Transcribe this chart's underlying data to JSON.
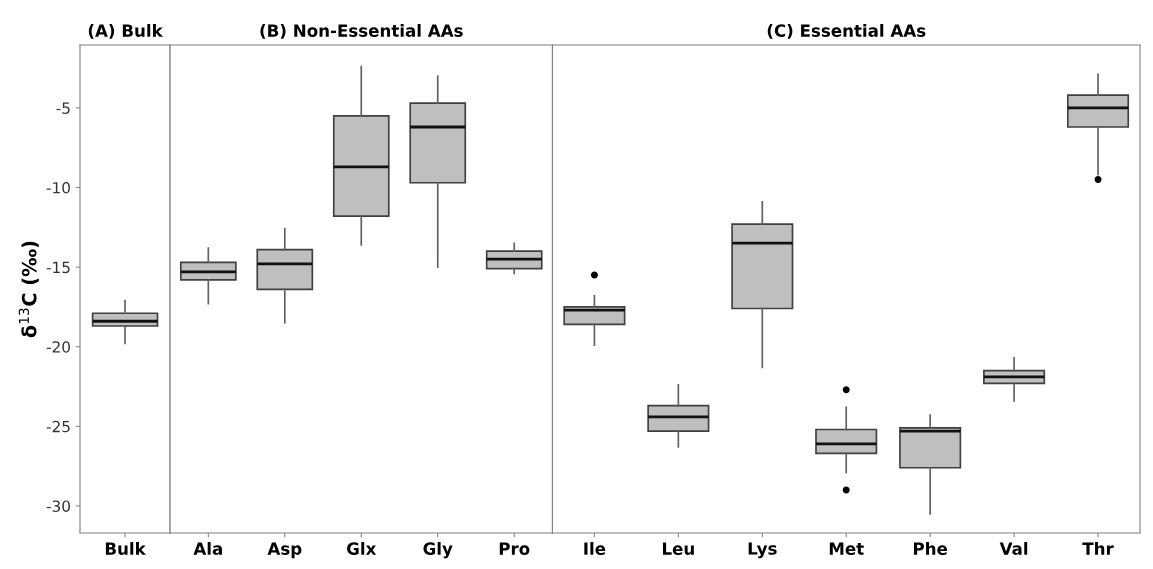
{
  "chart_data": [
    {
      "type": "box",
      "title": "(A) Bulk",
      "ylabel": "δ$^{13}$C (‰)",
      "categories": [
        "Bulk"
      ],
      "ylim": [
        -31.7,
        -1.05
      ],
      "yticks": [
        -30,
        -25,
        -20,
        -15,
        -10,
        -5
      ],
      "color": "#bfbfbf",
      "grid": false,
      "boxes": [
        {
          "low": -19.8,
          "q1": -18.7,
          "median": -18.4,
          "q3": -17.9,
          "high": -17.1
        }
      ]
    },
    {
      "type": "box",
      "title": "(B) Non-Essential AAs",
      "categories": [
        "Ala",
        "Asp",
        "Glx",
        "Gly",
        "Pro"
      ],
      "ylim": [
        -31.7,
        -1.05
      ],
      "yticks": [
        -30,
        -25,
        -20,
        -15,
        -10,
        -5
      ],
      "tick_labels": "x",
      "color": "#bfbfbf",
      "grid": false,
      "boxes": [
        {
          "low": -17.3,
          "q1": -15.8,
          "median": -15.3,
          "q3": -14.7,
          "high": -13.8
        },
        {
          "low": -18.5,
          "q1": -16.4,
          "median": -14.8,
          "q3": -13.9,
          "high": -12.6
        },
        {
          "low": -13.6,
          "q1": -11.8,
          "median": -8.7,
          "q3": -5.5,
          "high": -2.4
        },
        {
          "low": -15.0,
          "q1": -9.7,
          "median": -6.2,
          "q3": -4.7,
          "high": -3.0
        },
        {
          "low": -15.4,
          "q1": -15.1,
          "median": -14.5,
          "q3": -14.0,
          "high": -13.5
        }
      ]
    },
    {
      "type": "box",
      "title": "(C) Essential AAs",
      "categories": [
        "Ile",
        "Leu",
        "Lys",
        "Met",
        "Phe",
        "Val",
        "Thr"
      ],
      "ylim": [
        -31.7,
        -1.05
      ],
      "yticks": [
        -30,
        -25,
        -20,
        -15,
        -10,
        -5
      ],
      "tick_labels": "x",
      "color": "#bfbfbf",
      "grid": false,
      "boxes": [
        {
          "low": -19.9,
          "q1": -18.6,
          "median": -17.7,
          "q3": -17.5,
          "high": -16.8,
          "outliers": [
            -15.5
          ]
        },
        {
          "low": -26.3,
          "q1": -25.3,
          "median": -24.4,
          "q3": -23.7,
          "high": -22.4
        },
        {
          "low": -21.3,
          "q1": -17.6,
          "median": -13.5,
          "q3": -12.3,
          "high": -10.9
        },
        {
          "low": -27.9,
          "q1": -26.7,
          "median": -26.1,
          "q3": -25.2,
          "high": -23.8,
          "outliers": [
            -22.7,
            -29.0
          ]
        },
        {
          "low": -30.5,
          "q1": -27.6,
          "median": -25.3,
          "q3": -25.1,
          "high": -24.3
        },
        {
          "low": -23.4,
          "q1": -22.3,
          "median": -21.9,
          "q3": -21.5,
          "high": -20.7
        },
        {
          "low": -9.2,
          "q1": -6.2,
          "median": -5.0,
          "q3": -4.2,
          "high": -2.9,
          "outliers": [
            -9.5
          ]
        }
      ]
    }
  ]
}
